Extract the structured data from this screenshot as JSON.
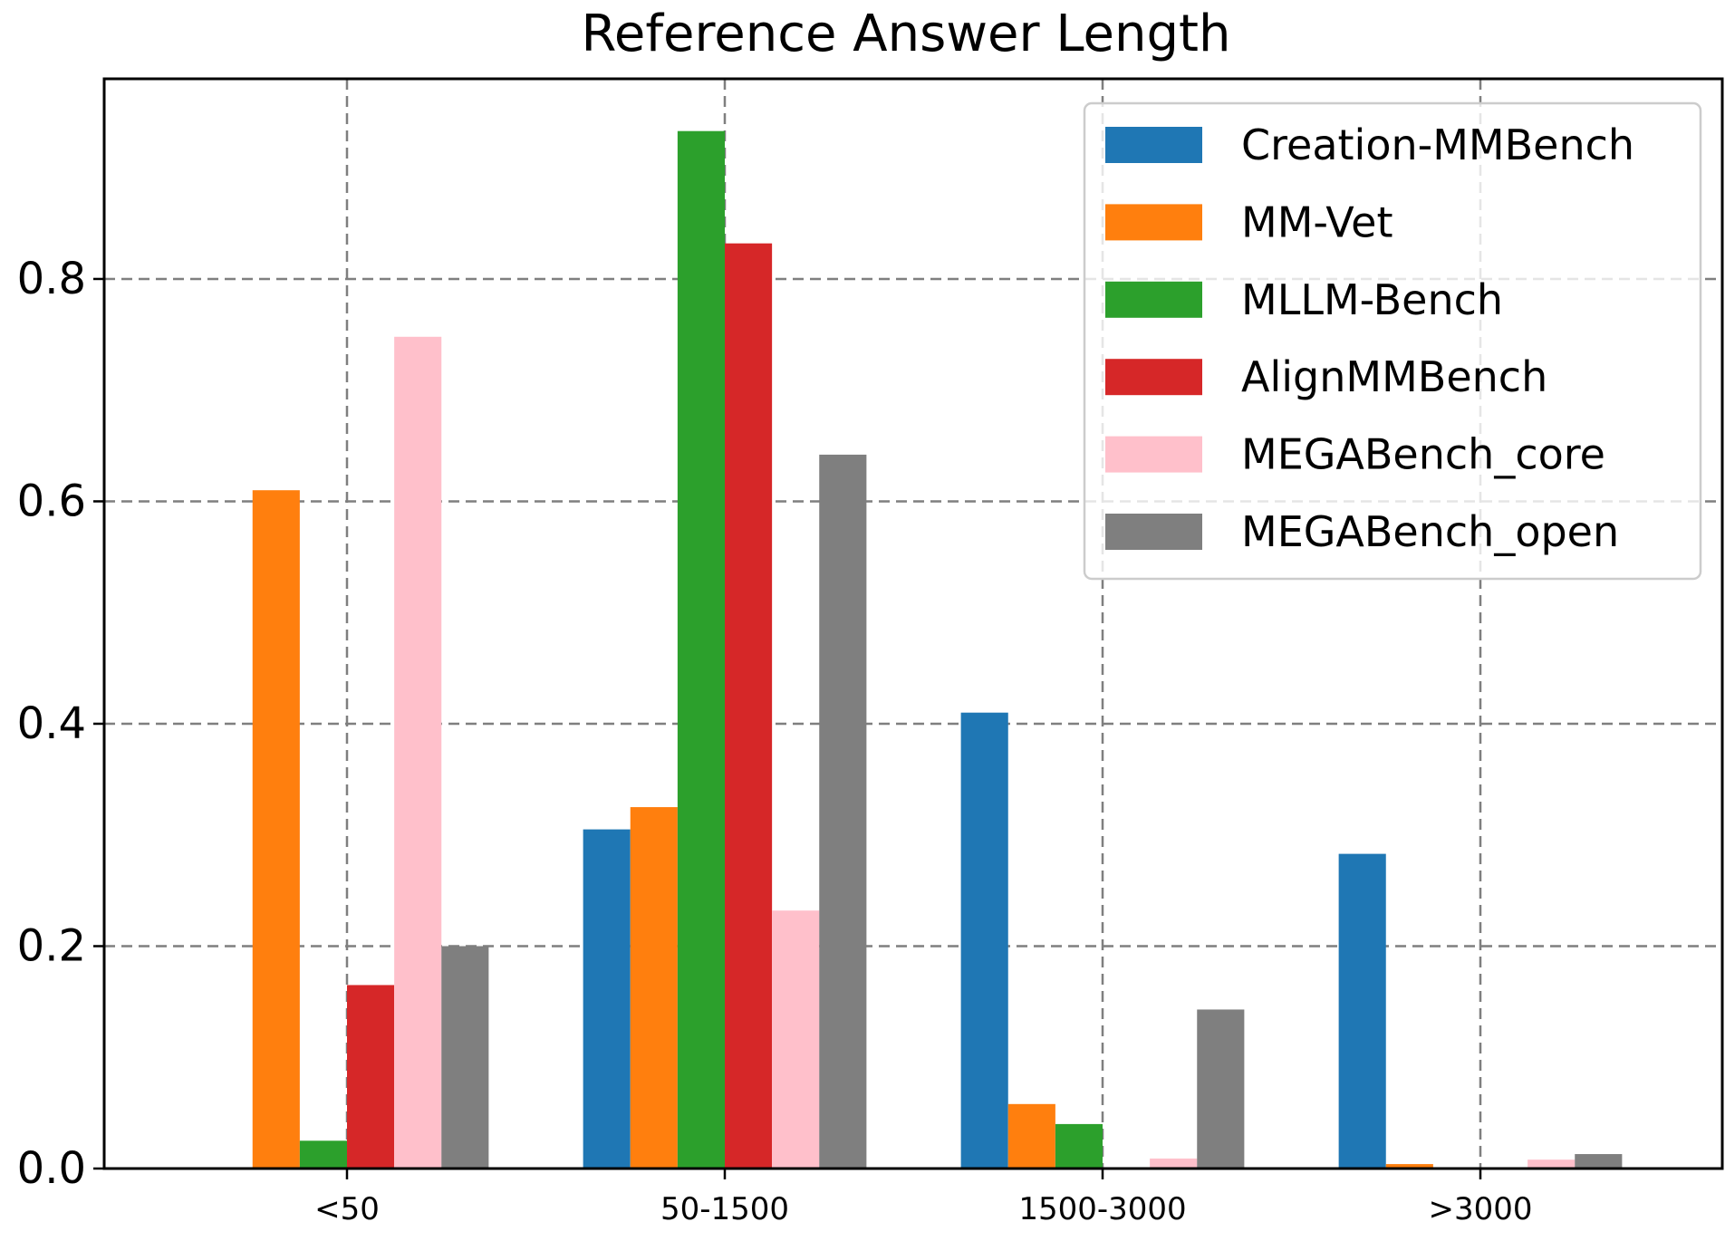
{
  "chart_data": {
    "type": "bar",
    "title": "Reference Answer Length",
    "xlabel": "",
    "ylabel": "",
    "categories": [
      "<50",
      "50-1500",
      "1500-3000",
      ">3000"
    ],
    "ylim": [
      0,
      0.98
    ],
    "yticks": [
      "0.0",
      "0.2",
      "0.4",
      "0.6",
      "0.8"
    ],
    "grid": true,
    "legend_position": "top-right",
    "series": [
      {
        "name": "Creation-MMBench",
        "color": "#1f77b4",
        "values": [
          0.0,
          0.305,
          0.41,
          0.283
        ]
      },
      {
        "name": "MM-Vet",
        "color": "#ff7f0e",
        "values": [
          0.61,
          0.325,
          0.058,
          0.004
        ]
      },
      {
        "name": "MLLM-Bench",
        "color": "#2ca02c",
        "values": [
          0.025,
          0.933,
          0.04,
          0.0
        ]
      },
      {
        "name": "AlignMMBench",
        "color": "#d62728",
        "values": [
          0.165,
          0.832,
          0.0,
          0.0
        ]
      },
      {
        "name": "MEGABench_core",
        "color": "#ffc0cb",
        "values": [
          0.748,
          0.232,
          0.009,
          0.008
        ]
      },
      {
        "name": "MEGABench_open",
        "color": "#7f7f7f",
        "values": [
          0.2,
          0.642,
          0.143,
          0.013
        ]
      }
    ]
  }
}
